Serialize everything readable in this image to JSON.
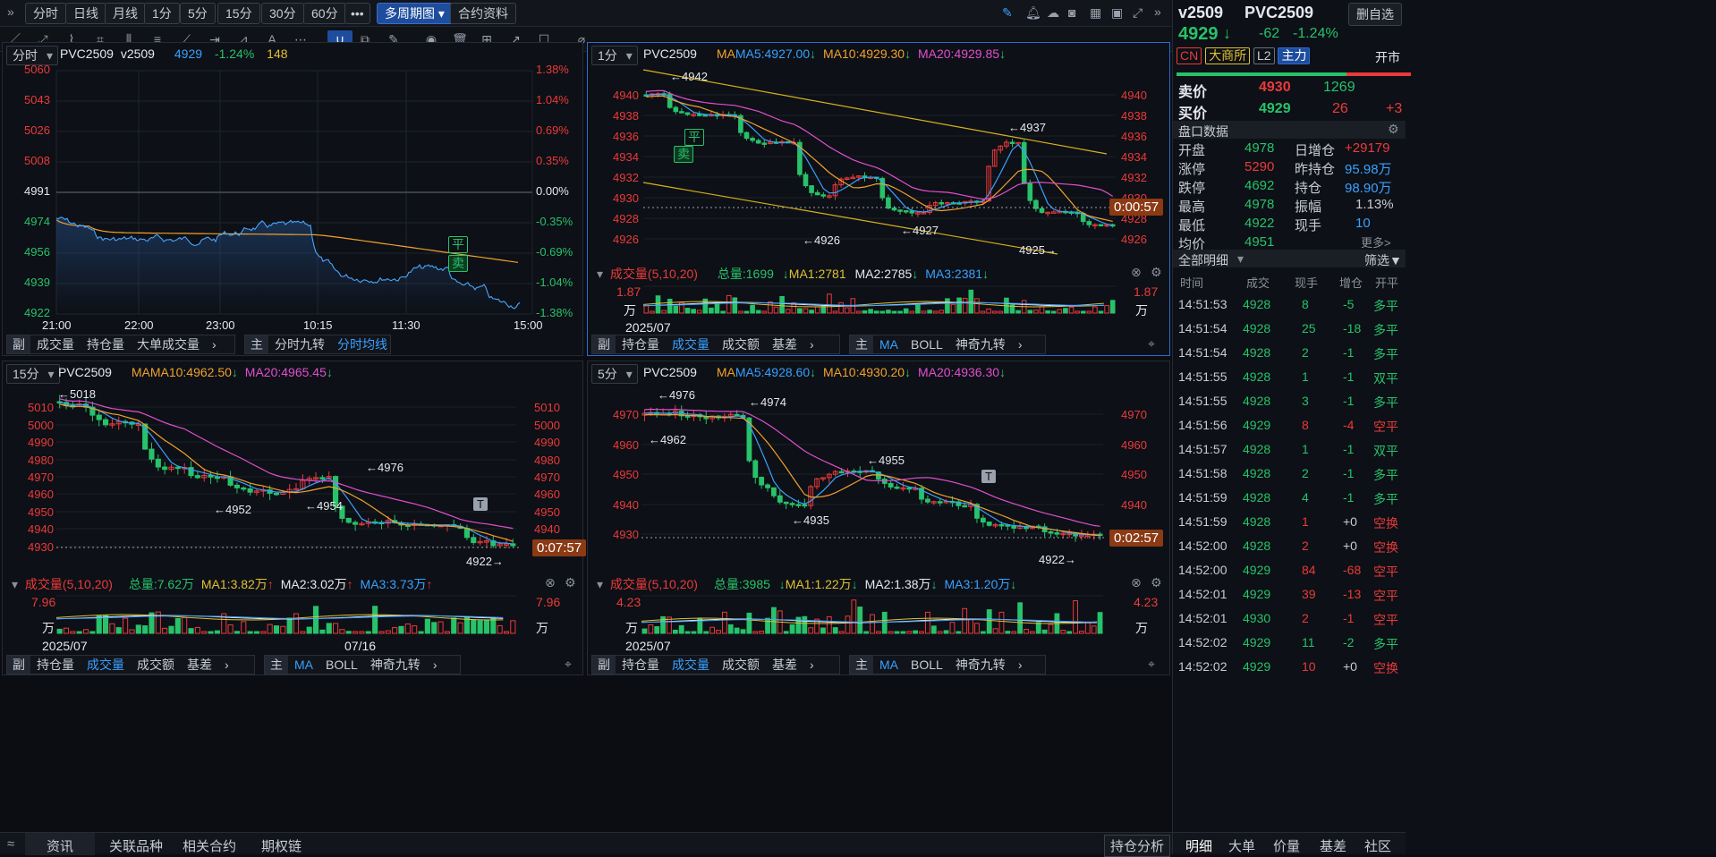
{
  "toolbar": {
    "expand": "»",
    "tabs": [
      "分时",
      "日线",
      "月线",
      "1分",
      "5分",
      "15分",
      "30分",
      "60分"
    ],
    "more": "•••",
    "multi": "多周期图",
    "contract": "合约资料"
  },
  "p1": {
    "period": "分时",
    "symbol": "PVC2509",
    "code": "v2509",
    "price": "4929",
    "chg": "-1.24%",
    "vol": "148",
    "ylabels": [
      "5060",
      "5043",
      "5026",
      "5008",
      "4991",
      "4974",
      "4956",
      "4939",
      "4922"
    ],
    "rlabels": [
      "1.38%",
      "1.04%",
      "0.69%",
      "0.35%",
      "0.00%",
      "-0.35%",
      "-0.69%",
      "-1.04%",
      "-1.38%"
    ],
    "xlabels": [
      "21:00",
      "22:00",
      "23:00",
      "10:15",
      "11:30",
      "15:00"
    ],
    "marker_flat": "平",
    "marker_sell": "卖",
    "foot_left": {
      "tag": "副",
      "items": [
        "成交量",
        "持仓量",
        "大单成交量"
      ]
    },
    "foot_right": {
      "tag": "主",
      "items": [
        "分时九转",
        "分时均线"
      ]
    }
  },
  "p2": {
    "period": "1分",
    "symbol": "PVC2509",
    "ma": "MA",
    "ma5": "MA5:4927.00",
    "ma10": "MA10:4929.30",
    "ma20": "MA20:4929.85",
    "ylabels": [
      "4940",
      "4938",
      "4936",
      "4934",
      "4932",
      "4930",
      "4928",
      "4926"
    ],
    "ann": [
      "←4942",
      "←4937",
      "←4926",
      "←4927",
      "4925→"
    ],
    "marker_flat": "平",
    "marker_sell": "卖",
    "countdown": "0:00:57",
    "volhead": {
      "title": "成交量(5,10,20)",
      "total": "总量:1699",
      "ma1": "MA1:2781",
      "ma2": "MA2:2785",
      "ma3": "MA3:2381"
    },
    "volmax": "1.87",
    "volunit": "万",
    "date": "2025/07",
    "chart_data": {
      "type": "candlestick",
      "note_levels": [
        4942,
        4937,
        4926,
        4927,
        4925
      ]
    },
    "foot_left": {
      "tag": "副",
      "items": [
        "持仓量",
        "成交量",
        "成交额",
        "基差"
      ]
    },
    "foot_right": {
      "tag": "主",
      "items": [
        "MA",
        "BOLL",
        "神奇九转"
      ]
    }
  },
  "p3": {
    "period": "15分",
    "symbol": "PVC2509",
    "ma": "MA",
    "ma10": "MA10:4962.50",
    "ma20": "MA20:4965.45",
    "ylabels": [
      "5010",
      "5000",
      "4990",
      "4980",
      "4970",
      "4960",
      "4950",
      "4940",
      "4930"
    ],
    "ann": [
      "←5018",
      "←4952",
      "←4954",
      "←4976",
      "4922→"
    ],
    "t_marker": "T",
    "countdown": "0:07:57",
    "volhead": {
      "title": "成交量(5,10,20)",
      "total": "总量:7.62万",
      "ma1": "MA1:3.82万",
      "ma2": "MA2:3.02万",
      "ma3": "MA3:3.73万"
    },
    "volmax": "7.96",
    "volunit": "万",
    "date": "2025/07",
    "date2": "07/16",
    "foot_left": {
      "tag": "副",
      "items": [
        "持仓量",
        "成交量",
        "成交额",
        "基差"
      ]
    },
    "foot_right": {
      "tag": "主",
      "items": [
        "MA",
        "BOLL",
        "神奇九转"
      ]
    }
  },
  "p4": {
    "period": "5分",
    "symbol": "PVC2509",
    "ma": "MA",
    "ma5": "MA5:4928.60",
    "ma10": "MA10:4930.20",
    "ma20": "MA20:4936.30",
    "ylabels": [
      "4970",
      "4960",
      "4950",
      "4940",
      "4930"
    ],
    "ann": [
      "←4976",
      "←4974",
      "←4962",
      "←4955",
      "←4935",
      "4922→"
    ],
    "t_marker": "T",
    "countdown": "0:02:57",
    "volhead": {
      "title": "成交量(5,10,20)",
      "total": "总量:3985",
      "ma1": "MA1:1.22万",
      "ma2": "MA2:1.38万",
      "ma3": "MA3:1.20万"
    },
    "volmax": "4.23",
    "volunit": "万",
    "date": "2025/07",
    "foot_left": {
      "tag": "副",
      "items": [
        "持仓量",
        "成交量",
        "成交额",
        "基差"
      ]
    },
    "foot_right": {
      "tag": "主",
      "items": [
        "MA",
        "BOLL",
        "神奇九转"
      ]
    }
  },
  "side": {
    "code": "v2509",
    "name": "PVC2509",
    "remove": "删自选",
    "price": "4929",
    "arrow": "↓",
    "chg": "-62",
    "pct": "-1.24%",
    "tags": [
      "CN",
      "大商所",
      "L2",
      "主力"
    ],
    "open_type": "开市",
    "ask_label": "卖价",
    "ask": "4930",
    "ask_vol": "1269",
    "bid_label": "买价",
    "bid": "4929",
    "bid_vol": "26",
    "bid_extra": "+3",
    "panel_title": "盘口数据",
    "stats": [
      [
        "开盘",
        "4978",
        "日增仓",
        "+29179"
      ],
      [
        "涨停",
        "5290",
        "昨持仓",
        "95.98万"
      ],
      [
        "跌停",
        "4692",
        "持仓",
        "98.90万"
      ],
      [
        "最高",
        "4978",
        "振幅",
        "1.13%"
      ],
      [
        "最低",
        "4922",
        "现手",
        "10"
      ],
      [
        "均价",
        "4951",
        "",
        ""
      ]
    ],
    "more": "更多>",
    "detail_title": "全部明细",
    "filter": "筛选",
    "cols": [
      "时间",
      "成交",
      "现手",
      "增仓",
      "开平"
    ],
    "trades": [
      [
        "14:51:53",
        "4928",
        "8",
        "-5",
        "多平"
      ],
      [
        "14:51:54",
        "4928",
        "25",
        "-18",
        "多平"
      ],
      [
        "14:51:54",
        "4928",
        "2",
        "-1",
        "多平"
      ],
      [
        "14:51:55",
        "4928",
        "1",
        "-1",
        "双平"
      ],
      [
        "14:51:55",
        "4928",
        "3",
        "-1",
        "多平"
      ],
      [
        "14:51:56",
        "4929",
        "8",
        "-4",
        "空平"
      ],
      [
        "14:51:57",
        "4928",
        "1",
        "-1",
        "双平"
      ],
      [
        "14:51:58",
        "4928",
        "2",
        "-1",
        "多平"
      ],
      [
        "14:51:59",
        "4928",
        "4",
        "-1",
        "多平"
      ],
      [
        "14:51:59",
        "4928",
        "1",
        "+0",
        "空换"
      ],
      [
        "14:52:00",
        "4928",
        "2",
        "+0",
        "空换"
      ],
      [
        "14:52:00",
        "4929",
        "84",
        "-68",
        "空平"
      ],
      [
        "14:52:01",
        "4929",
        "39",
        "-13",
        "空平"
      ],
      [
        "14:52:01",
        "4930",
        "2",
        "-1",
        "空平"
      ],
      [
        "14:52:02",
        "4929",
        "11",
        "-2",
        "多平"
      ],
      [
        "14:52:02",
        "4929",
        "10",
        "+0",
        "空换"
      ]
    ],
    "tabs": [
      "明细",
      "大单",
      "价量",
      "基差",
      "社区"
    ]
  },
  "bottom": {
    "tabs": [
      "资讯",
      "关联品种",
      "相关合约",
      "期权链"
    ],
    "hold": "持仓分析"
  }
}
